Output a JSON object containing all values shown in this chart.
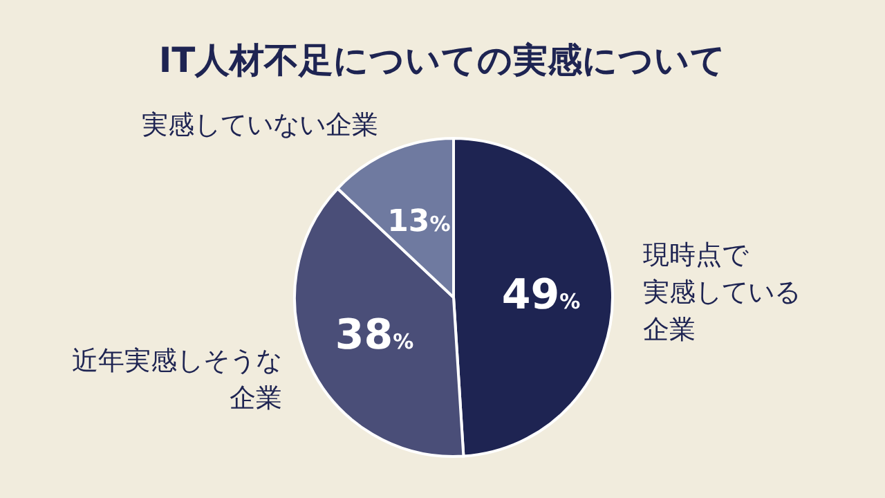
{
  "chart_data": {
    "type": "pie",
    "title": "IT人材不足についての実感について",
    "categories": [
      "現時点で実感している企業",
      "近年実感しそうな企業",
      "実感していない企業"
    ],
    "values": [
      49,
      38,
      13
    ],
    "value_labels": [
      "49%",
      "38%",
      "13%"
    ],
    "colors": [
      "#1e2452",
      "#4a4e78",
      "#6f7aa0"
    ]
  }
}
